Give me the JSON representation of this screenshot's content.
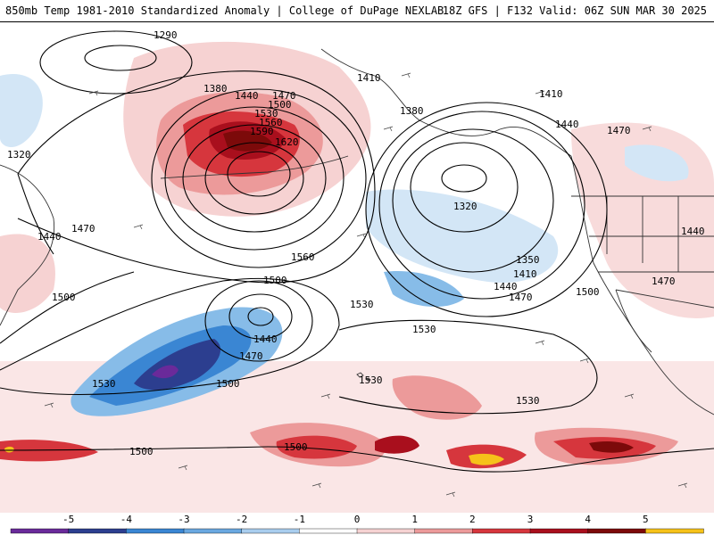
{
  "header": {
    "left": "850mb Temp 1981-2010 Standardized Anomaly | College of DuPage NEXLAB",
    "right": "18Z GFS | F132 Valid: 06Z SUN MAR 30 2025"
  },
  "colors": {
    "coast": "#333333",
    "contour": "#000000",
    "anom": {
      "-5": "#6a2a9a",
      "-4": "#2c3e8f",
      "-3": "#3a86d3",
      "-2": "#87bce8",
      "-1": "#d3e6f6",
      "1": "#f6d2d2",
      "2": "#ec9a9a",
      "3": "#d6363d",
      "4": "#a90f1d",
      "5": "#7c0a0a",
      "hot": "#f6c21a"
    }
  },
  "contour_labels": [
    "1290",
    "1380",
    "1440",
    "1470",
    "1500",
    "1530",
    "1560",
    "1590",
    "1620",
    "1320",
    "1440",
    "1470",
    "1410",
    "1410",
    "1380",
    "1440",
    "1470",
    "1320",
    "1350",
    "1410",
    "1440",
    "1470",
    "1500",
    "1560",
    "1500",
    "1440",
    "1470",
    "1500",
    "1530",
    "1530",
    "1530",
    "1530",
    "1500",
    "1500",
    "1500",
    "1530",
    "1440",
    "1470"
  ],
  "colorbar": {
    "ticks": [
      "-5",
      "-4",
      "-3",
      "-2",
      "-1",
      "0",
      "1",
      "2",
      "3",
      "4",
      "5"
    ],
    "segments": [
      "#6a2a9a",
      "#2c3e8f",
      "#3a86d3",
      "#6aa8e0",
      "#a9cdee",
      "#ffffff",
      "#f6d2d2",
      "#ec9a9a",
      "#d6363d",
      "#a90f1d",
      "#7c0a0a",
      "#f6c21a"
    ]
  }
}
